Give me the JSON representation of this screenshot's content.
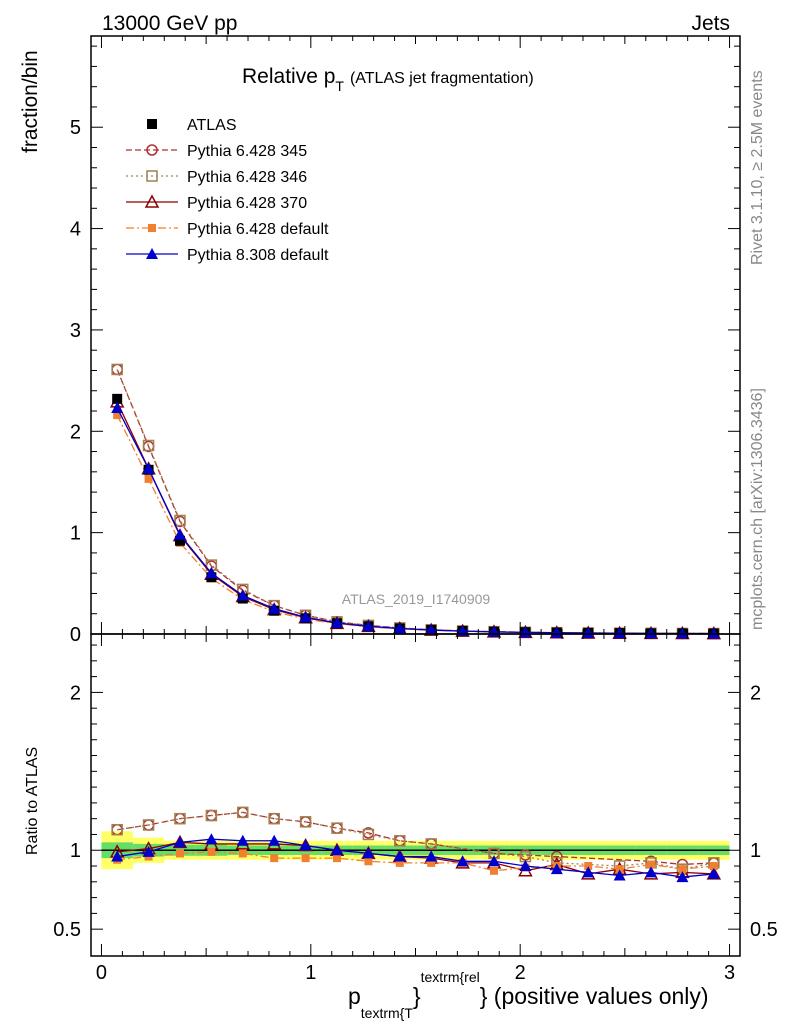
{
  "header": {
    "left": "13000 GeV pp",
    "right": "Jets"
  },
  "side_text": {
    "rivet": "Rivet 3.1.10, ≥ 2.5M events",
    "mcplots": "mcplots.cern.ch [arXiv:1306.3436]"
  },
  "chart_data": [
    {
      "type": "line",
      "title_main": "Relative p",
      "title_sub": "T",
      "title_note": "(ATLAS jet fragmentation)",
      "ylabel": "fraction/bin",
      "watermark": "ATLAS_2019_I1740909",
      "xlim": [
        -0.05,
        3.05
      ],
      "ylim": [
        0,
        5.9
      ],
      "y_ticks": [
        0,
        1,
        2,
        3,
        4,
        5
      ],
      "y_tick_labels": [
        "0",
        "1",
        "2",
        "3",
        "4",
        "5"
      ],
      "legend_position": "top-left",
      "x": [
        0.075,
        0.225,
        0.375,
        0.525,
        0.675,
        0.825,
        0.975,
        1.125,
        1.275,
        1.425,
        1.575,
        1.725,
        1.875,
        2.025,
        2.175,
        2.325,
        2.475,
        2.625,
        2.775,
        2.925
      ],
      "series": [
        {
          "name": "ATLAS",
          "color": "#000000",
          "marker": "filled-square",
          "line": "none",
          "values": [
            2.32,
            1.62,
            0.92,
            0.56,
            0.35,
            0.23,
            0.155,
            0.105,
            0.075,
            0.055,
            0.04,
            0.03,
            0.023,
            0.018,
            0.014,
            0.011,
            0.009,
            0.007,
            0.006,
            0.005
          ]
        },
        {
          "name": "Pythia 6.428 345",
          "color": "#b03030",
          "marker": "open-circle",
          "line": "dashed",
          "values": [
            2.61,
            1.85,
            1.11,
            0.67,
            0.43,
            0.28,
            0.185,
            0.12,
            0.085,
            0.06,
            0.042,
            0.03,
            0.023,
            0.017,
            0.013,
            0.01,
            0.008,
            0.0065,
            0.0055,
            0.0045
          ]
        },
        {
          "name": "Pythia 6.428 346",
          "color": "#a08050",
          "marker": "open-square",
          "line": "dotted",
          "values": [
            2.61,
            1.86,
            1.12,
            0.68,
            0.44,
            0.28,
            0.185,
            0.12,
            0.085,
            0.06,
            0.042,
            0.03,
            0.023,
            0.017,
            0.013,
            0.01,
            0.008,
            0.0065,
            0.0055,
            0.0045
          ]
        },
        {
          "name": "Pythia 6.428 370",
          "color": "#8b0000",
          "marker": "open-triangle",
          "line": "solid",
          "values": [
            2.29,
            1.63,
            0.97,
            0.59,
            0.37,
            0.24,
            0.16,
            0.105,
            0.075,
            0.053,
            0.038,
            0.028,
            0.021,
            0.016,
            0.0125,
            0.0095,
            0.0078,
            0.006,
            0.0052,
            0.0043
          ]
        },
        {
          "name": "Pythia 6.428 default",
          "color": "#f08030",
          "marker": "filled-square-small",
          "line": "dashdot",
          "values": [
            2.16,
            1.53,
            0.9,
            0.55,
            0.34,
            0.22,
            0.148,
            0.1,
            0.07,
            0.051,
            0.037,
            0.028,
            0.02,
            0.016,
            0.0125,
            0.01,
            0.0082,
            0.0065,
            0.0053,
            0.0045
          ]
        },
        {
          "name": "Pythia 8.308 default",
          "color": "#0000cc",
          "marker": "filled-triangle",
          "line": "solid",
          "values": [
            2.23,
            1.63,
            0.98,
            0.6,
            0.38,
            0.25,
            0.165,
            0.11,
            0.076,
            0.054,
            0.039,
            0.028,
            0.021,
            0.016,
            0.0125,
            0.0095,
            0.0077,
            0.0061,
            0.005,
            0.0043
          ]
        }
      ]
    },
    {
      "type": "line",
      "ylabel": "Ratio to ATLAS",
      "xlabel_main": "p",
      "xlabel_sub": "textrm{T",
      "xlabel_sup": "textrm{rel",
      "xlabel_tail": "} (positive values only)",
      "xlabel_brace": "}",
      "xlim": [
        -0.05,
        3.05
      ],
      "ylim": [
        0.33,
        2.37
      ],
      "x_ticks": [
        0,
        1,
        2,
        3
      ],
      "x_tick_labels": [
        "0",
        "1",
        "2",
        "3"
      ],
      "y_ticks": [
        0.5,
        1,
        2
      ],
      "y_tick_labels": [
        "0.5",
        "1",
        "2"
      ],
      "reference_line": 1,
      "x": [
        0.075,
        0.225,
        0.375,
        0.525,
        0.675,
        0.825,
        0.975,
        1.125,
        1.275,
        1.425,
        1.575,
        1.725,
        1.875,
        2.025,
        2.175,
        2.325,
        2.475,
        2.625,
        2.775,
        2.925
      ],
      "band_inner": [
        0.05,
        0.04,
        0.035,
        0.035,
        0.03,
        0.03,
        0.03,
        0.03,
        0.03,
        0.03,
        0.03,
        0.03,
        0.03,
        0.03,
        0.03,
        0.03,
        0.03,
        0.03,
        0.03,
        0.03
      ],
      "band_outer": [
        0.12,
        0.08,
        0.06,
        0.06,
        0.06,
        0.06,
        0.06,
        0.06,
        0.06,
        0.06,
        0.06,
        0.06,
        0.06,
        0.06,
        0.06,
        0.06,
        0.06,
        0.06,
        0.06,
        0.06
      ],
      "band_colors": {
        "inner": "#66dd66",
        "outer": "#ffff66"
      },
      "series": [
        {
          "name": "Pythia 6.428 345",
          "color": "#b03030",
          "marker": "open-circle",
          "line": "dashed",
          "values": [
            1.13,
            1.16,
            1.2,
            1.22,
            1.24,
            1.2,
            1.18,
            1.14,
            1.11,
            1.06,
            1.04,
            null,
            0.98,
            0.97,
            0.96,
            null,
            null,
            0.93,
            0.91,
            0.92
          ]
        },
        {
          "name": "Pythia 6.428 346",
          "color": "#a08050",
          "marker": "open-square",
          "line": "dotted",
          "values": [
            1.13,
            1.16,
            1.2,
            1.22,
            1.24,
            1.2,
            1.18,
            1.14,
            1.1,
            1.06,
            1.04,
            null,
            0.98,
            0.96,
            0.92,
            null,
            0.9,
            0.92,
            0.88,
            0.92
          ]
        },
        {
          "name": "Pythia 6.428 370",
          "color": "#8b0000",
          "marker": "open-triangle",
          "line": "solid",
          "values": [
            0.99,
            1.01,
            1.05,
            1.04,
            1.04,
            1.04,
            1.03,
            1.0,
            0.98,
            0.96,
            0.95,
            0.92,
            0.92,
            0.87,
            0.91,
            0.85,
            0.88,
            0.85,
            0.86,
            0.85
          ]
        },
        {
          "name": "Pythia 6.428 default",
          "color": "#f08030",
          "marker": "filled-square-small",
          "line": "dashdot",
          "values": [
            0.94,
            0.96,
            0.98,
            0.99,
            0.98,
            0.95,
            0.95,
            0.95,
            0.93,
            0.92,
            0.92,
            0.92,
            0.87,
            0.89,
            0.9,
            0.9,
            0.88,
            0.91,
            0.88,
            0.9
          ]
        },
        {
          "name": "Pythia 8.308 default",
          "color": "#0000cc",
          "marker": "filled-triangle",
          "line": "solid",
          "values": [
            0.96,
            0.99,
            1.05,
            1.07,
            1.06,
            1.06,
            1.03,
            1.0,
            0.98,
            0.96,
            0.96,
            0.93,
            0.93,
            0.9,
            0.88,
            0.86,
            0.84,
            0.86,
            0.83,
            0.85
          ]
        }
      ]
    }
  ]
}
